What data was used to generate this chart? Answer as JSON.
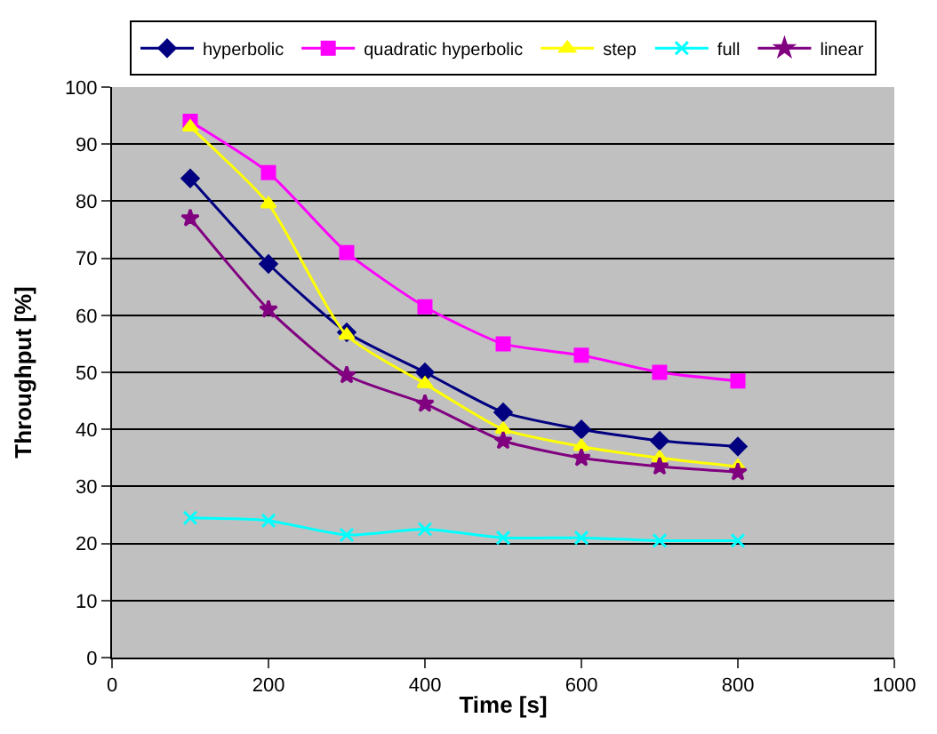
{
  "chart_data": {
    "type": "line",
    "xlabel": "Time [s]",
    "ylabel": "Throughput [%]",
    "x": [
      100,
      200,
      300,
      400,
      500,
      600,
      700,
      800
    ],
    "xlim": [
      0,
      1000
    ],
    "xticks": [
      0,
      200,
      400,
      600,
      800,
      1000
    ],
    "ylim": [
      0,
      100
    ],
    "yticks": [
      0,
      10,
      20,
      30,
      40,
      50,
      60,
      70,
      80,
      90,
      100
    ],
    "grid": "y",
    "legend": "top",
    "series": [
      {
        "name": "hyperbolic",
        "color": "#000080",
        "marker": "diamond",
        "values": [
          84,
          69,
          57,
          50,
          43,
          40,
          38,
          37
        ]
      },
      {
        "name": "quadratic hyperbolic",
        "color": "#ff00ff",
        "marker": "square",
        "values": [
          94,
          85,
          71,
          61.5,
          55,
          53,
          50,
          48.5
        ]
      },
      {
        "name": "step",
        "color": "#ffff00",
        "marker": "triangle",
        "values": [
          93,
          79.5,
          56.5,
          48,
          40,
          37,
          35,
          33.5
        ]
      },
      {
        "name": "full",
        "color": "#00ffff",
        "marker": "cross",
        "values": [
          24.5,
          24,
          21.5,
          22.5,
          21,
          21,
          20.5,
          20.5
        ]
      },
      {
        "name": "linear",
        "color": "#800080",
        "marker": "star",
        "values": [
          77,
          61,
          49.5,
          44.5,
          38,
          35,
          33.5,
          32.5
        ]
      }
    ]
  }
}
